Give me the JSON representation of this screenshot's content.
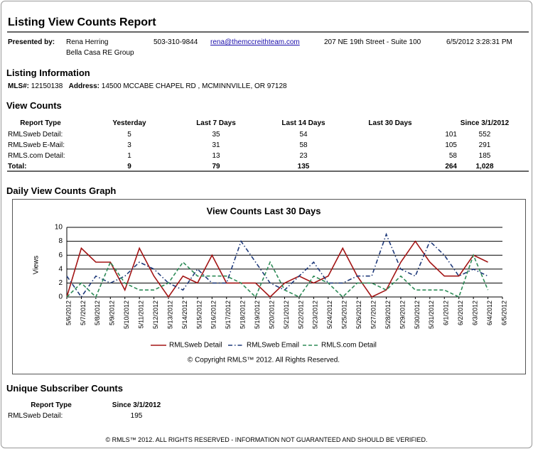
{
  "header": {
    "title": "Listing View Counts Report"
  },
  "presenter": {
    "label": "Presented by:",
    "name": "Rena Herring",
    "company": "Bella Casa RE Group",
    "phone": "503-310-9844",
    "email": "rena@themccreithteam.com",
    "address": "207 NE 19th Street - Suite 100",
    "timestamp": "6/5/2012 3:28:31 PM"
  },
  "listing": {
    "heading": "Listing Information",
    "mls_label": "MLS#:",
    "mls": "12150138",
    "address_label": "Address:",
    "address": "14500 MCCABE CHAPEL RD , MCMINNVILLE, OR 97128"
  },
  "view_counts": {
    "heading": "View Counts",
    "columns": [
      "Report Type",
      "Yesterday",
      "Last 7 Days",
      "Last 14 Days",
      "Last 30 Days",
      "Since 3/1/2012"
    ],
    "rows": [
      [
        "RMLSweb Detail:",
        "5",
        "35",
        "54",
        "101",
        "552"
      ],
      [
        "RMLSweb E-Mail:",
        "3",
        "31",
        "58",
        "105",
        "291"
      ],
      [
        "RMLS.com Detail:",
        "1",
        "13",
        "23",
        "58",
        "185"
      ],
      [
        "Total:",
        "9",
        "79",
        "135",
        "264",
        "1,028"
      ]
    ]
  },
  "graph_heading": "Daily View Counts Graph",
  "chart_data": {
    "type": "line",
    "title": "View Counts Last 30 Days",
    "y_label": "Views",
    "categories": [
      "5/6/2012",
      "5/7/2012",
      "5/8/2012",
      "5/9/2012",
      "5/10/2012",
      "5/11/2012",
      "5/12/2012",
      "5/13/2012",
      "5/14/2012",
      "5/15/2012",
      "5/16/2012",
      "5/17/2012",
      "5/18/2012",
      "5/19/2012",
      "5/20/2012",
      "5/21/2012",
      "5/22/2012",
      "5/23/2012",
      "5/24/2012",
      "5/25/2012",
      "5/26/2012",
      "5/27/2012",
      "5/28/2012",
      "5/29/2012",
      "5/30/2012",
      "5/31/2012",
      "6/1/2012",
      "6/2/2012",
      "6/3/2012",
      "6/4/2012",
      "6/5/2012"
    ],
    "series": [
      {
        "name": "RMLSweb Detail",
        "color": "#a31515",
        "dash": "solid",
        "values": [
          0,
          7,
          5,
          5,
          1,
          7,
          3,
          0,
          3,
          2,
          6,
          2,
          2,
          2,
          0,
          2,
          3,
          2,
          3,
          7,
          3,
          0,
          1,
          5,
          8,
          5,
          3,
          3,
          6,
          5,
          null
        ]
      },
      {
        "name": "RMLSweb Email",
        "color": "#1f3a7a",
        "dash": "dashdot",
        "values": [
          3,
          0,
          3,
          2,
          3,
          5,
          4,
          2,
          1,
          4,
          2,
          2,
          8,
          5,
          2,
          1,
          3,
          5,
          2,
          2,
          3,
          3,
          9,
          4,
          3,
          8,
          6,
          3,
          4,
          3,
          null
        ]
      },
      {
        "name": "RMLS.com Detail",
        "color": "#2e8b57",
        "dash": "dash",
        "values": [
          0,
          2,
          0,
          5,
          2,
          1,
          1,
          2,
          5,
          3,
          3,
          3,
          2,
          0,
          5,
          1,
          0,
          3,
          2,
          0,
          2,
          2,
          1,
          3,
          1,
          1,
          1,
          0,
          6,
          1,
          null
        ]
      }
    ],
    "ylim": [
      0,
      10
    ],
    "yticks": [
      0,
      2,
      4,
      6,
      8,
      10
    ],
    "grid": true,
    "legend": "bottom",
    "copyright": "© Copyright RMLS™ 2012.  All Rights Reserved."
  },
  "unique": {
    "heading": "Unique Subscriber Counts",
    "columns": [
      "Report Type",
      "Since 3/1/2012"
    ],
    "rows": [
      [
        "RMLSweb Detail:",
        "195"
      ]
    ]
  },
  "footer": "© RMLS™ 2012. ALL RIGHTS RESERVED - INFORMATION NOT GUARANTEED AND SHOULD BE VERIFIED."
}
